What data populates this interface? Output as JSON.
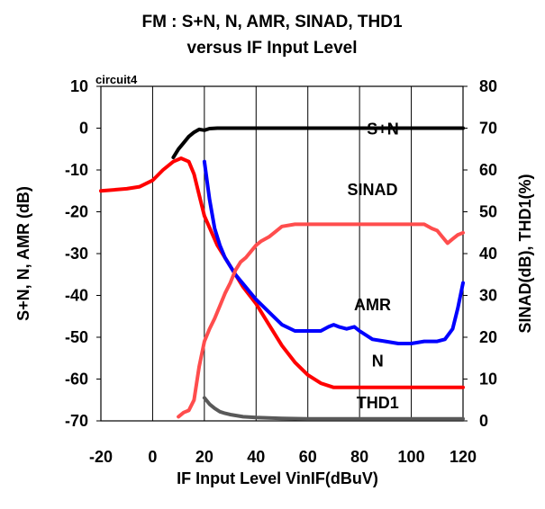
{
  "chart_data": {
    "type": "line",
    "title": "FM : S+N, N, AMR, SINAD, THD1",
    "subtitle": "versus IF Input Level",
    "tag": "circuit4",
    "xlabel": "IF Input Level VinIF(dBuV)",
    "ylabel_left": "S+N, N, AMR (dB)",
    "ylabel_right": "SINAD(dB), THD1(%)",
    "xlim": [
      -20,
      120
    ],
    "ylim_left": [
      -70,
      10
    ],
    "ylim_right": [
      0,
      80
    ],
    "x_ticks": [
      "-20",
      "0",
      "20",
      "40",
      "60",
      "80",
      "100",
      "120"
    ],
    "y_ticks_left": [
      "10",
      "0",
      "-10",
      "-20",
      "-30",
      "-40",
      "-50",
      "-60",
      "-70"
    ],
    "y_ticks_right": [
      "80",
      "70",
      "60",
      "50",
      "40",
      "30",
      "20",
      "10",
      "0"
    ],
    "grid": "vertical",
    "series": [
      {
        "name": "S+N",
        "axis": "left",
        "color": "#000000",
        "label_x": 89,
        "label_y": 0,
        "points": [
          [
            8,
            -7
          ],
          [
            10,
            -5
          ],
          [
            12,
            -3.5
          ],
          [
            14,
            -2
          ],
          [
            16,
            -1
          ],
          [
            18,
            -0.3
          ],
          [
            20,
            -0.5
          ],
          [
            22,
            -0.1
          ],
          [
            25,
            0
          ],
          [
            30,
            0
          ],
          [
            40,
            0
          ],
          [
            60,
            0
          ],
          [
            80,
            0
          ],
          [
            100,
            0
          ],
          [
            120,
            0
          ]
        ]
      },
      {
        "name": "N",
        "axis": "left",
        "color": "#ff0000",
        "label_x": 87,
        "label_y": -55.5,
        "points": [
          [
            -20,
            -15
          ],
          [
            -10,
            -14.5
          ],
          [
            -5,
            -14
          ],
          [
            0,
            -12.5
          ],
          [
            4,
            -10
          ],
          [
            8,
            -8
          ],
          [
            11,
            -7.2
          ],
          [
            14,
            -8
          ],
          [
            16,
            -11
          ],
          [
            18,
            -16
          ],
          [
            20,
            -21
          ],
          [
            25,
            -28
          ],
          [
            30,
            -33
          ],
          [
            35,
            -38
          ],
          [
            40,
            -42
          ],
          [
            45,
            -47
          ],
          [
            50,
            -52
          ],
          [
            55,
            -56
          ],
          [
            60,
            -59
          ],
          [
            65,
            -61
          ],
          [
            70,
            -62
          ],
          [
            80,
            -62
          ],
          [
            90,
            -62
          ],
          [
            100,
            -62
          ],
          [
            110,
            -62
          ],
          [
            120,
            -62
          ]
        ]
      },
      {
        "name": "AMR",
        "axis": "left",
        "color": "#0000ff",
        "label_x": 85,
        "label_y": -42,
        "points": [
          [
            20,
            -8
          ],
          [
            22,
            -17
          ],
          [
            24,
            -24
          ],
          [
            26,
            -28
          ],
          [
            28,
            -31
          ],
          [
            32,
            -35
          ],
          [
            36,
            -38
          ],
          [
            40,
            -41
          ],
          [
            45,
            -44
          ],
          [
            50,
            -47
          ],
          [
            55,
            -48.5
          ],
          [
            60,
            -48.5
          ],
          [
            65,
            -48.5
          ],
          [
            68,
            -47.5
          ],
          [
            70,
            -47
          ],
          [
            72,
            -47.5
          ],
          [
            75,
            -48
          ],
          [
            78,
            -47.5
          ],
          [
            80,
            -48.5
          ],
          [
            85,
            -50.5
          ],
          [
            90,
            -51
          ],
          [
            95,
            -51.5
          ],
          [
            100,
            -51.5
          ],
          [
            105,
            -51
          ],
          [
            110,
            -51
          ],
          [
            113,
            -50.5
          ],
          [
            116,
            -48
          ],
          [
            118,
            -43
          ],
          [
            120,
            -37
          ]
        ]
      },
      {
        "name": "SINAD",
        "axis": "right",
        "color": "#ff4d4d",
        "label_x": 85,
        "label_y": 55.5,
        "points": [
          [
            10,
            1
          ],
          [
            12,
            2
          ],
          [
            14,
            2.5
          ],
          [
            16,
            5
          ],
          [
            18,
            13
          ],
          [
            20,
            19
          ],
          [
            22,
            22
          ],
          [
            24,
            24.5
          ],
          [
            26,
            27.5
          ],
          [
            28,
            30.5
          ],
          [
            30,
            33
          ],
          [
            32,
            36
          ],
          [
            34,
            38
          ],
          [
            36,
            39
          ],
          [
            38,
            40.5
          ],
          [
            40,
            42
          ],
          [
            42,
            43
          ],
          [
            45,
            44
          ],
          [
            48,
            45.5
          ],
          [
            50,
            46.5
          ],
          [
            55,
            47
          ],
          [
            60,
            47
          ],
          [
            65,
            47
          ],
          [
            70,
            47
          ],
          [
            75,
            47
          ],
          [
            80,
            47
          ],
          [
            90,
            47
          ],
          [
            100,
            47
          ],
          [
            105,
            47
          ],
          [
            108,
            46
          ],
          [
            110,
            45.5
          ],
          [
            112,
            44
          ],
          [
            114,
            42.5
          ],
          [
            116,
            43.5
          ],
          [
            118,
            44.5
          ],
          [
            120,
            45
          ]
        ]
      },
      {
        "name": "THD1",
        "axis": "right",
        "color": "#595959",
        "label_x": 87,
        "label_y": 4.5,
        "points": [
          [
            20,
            5.5
          ],
          [
            22,
            4
          ],
          [
            24,
            3
          ],
          [
            26,
            2.2
          ],
          [
            28,
            1.8
          ],
          [
            30,
            1.5
          ],
          [
            35,
            1
          ],
          [
            40,
            0.8
          ],
          [
            50,
            0.6
          ],
          [
            60,
            0.5
          ],
          [
            80,
            0.5
          ],
          [
            100,
            0.5
          ],
          [
            120,
            0.5
          ]
        ]
      }
    ]
  }
}
